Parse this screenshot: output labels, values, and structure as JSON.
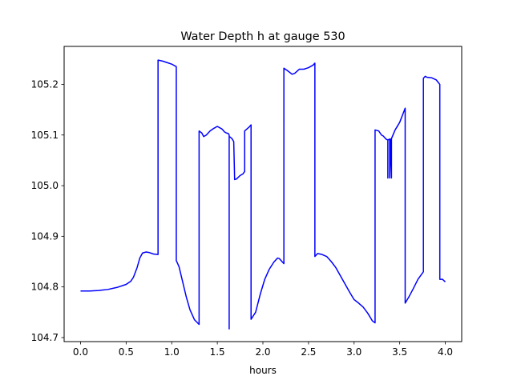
{
  "chart_data": {
    "type": "line",
    "title": "Water Depth h at gauge 530",
    "xlabel": "hours",
    "ylabel": "",
    "xlim": [
      -0.18,
      4.18
    ],
    "ylim": [
      104.692,
      105.275
    ],
    "xticks": [
      0.0,
      0.5,
      1.0,
      1.5,
      2.0,
      2.5,
      3.0,
      3.5,
      4.0
    ],
    "xtick_labels": [
      "0.0",
      "0.5",
      "1.0",
      "1.5",
      "2.0",
      "2.5",
      "3.0",
      "3.5",
      "4.0"
    ],
    "yticks": [
      104.7,
      104.8,
      104.9,
      105.0,
      105.1,
      105.2
    ],
    "ytick_labels": [
      "104.7",
      "104.8",
      "104.9",
      "105.0",
      "105.1",
      "105.2"
    ],
    "grid": false,
    "series": [
      {
        "color": "#0000ff",
        "x": [
          0.0,
          0.1,
          0.2,
          0.3,
          0.4,
          0.5,
          0.55,
          0.58,
          0.62,
          0.65,
          0.68,
          0.72,
          0.75,
          0.8,
          0.85,
          0.85,
          0.9,
          0.95,
          1.0,
          1.05,
          1.05,
          1.08,
          1.12,
          1.16,
          1.2,
          1.25,
          1.3,
          1.3,
          1.33,
          1.35,
          1.38,
          1.42,
          1.46,
          1.5,
          1.55,
          1.58,
          1.6,
          1.62,
          1.63,
          1.63,
          1.63,
          1.64,
          1.66,
          1.68,
          1.69,
          1.71,
          1.75,
          1.78,
          1.8,
          1.8,
          1.85,
          1.87,
          1.87,
          1.92,
          1.97,
          2.02,
          2.07,
          2.12,
          2.16,
          2.18,
          2.21,
          2.23,
          2.23,
          2.27,
          2.32,
          2.35,
          2.4,
          2.45,
          2.5,
          2.55,
          2.57,
          2.57,
          2.6,
          2.65,
          2.7,
          2.75,
          2.8,
          2.85,
          2.9,
          2.95,
          3.0,
          3.05,
          3.1,
          3.15,
          3.2,
          3.23,
          3.23,
          3.27,
          3.3,
          3.32,
          3.35,
          3.37,
          3.37,
          3.37,
          3.39,
          3.39,
          3.4,
          3.4,
          3.41,
          3.41,
          3.45,
          3.5,
          3.56,
          3.56,
          3.6,
          3.65,
          3.7,
          3.76,
          3.76,
          3.78,
          3.8,
          3.85,
          3.9,
          3.94,
          3.94,
          3.97,
          4.0
        ],
        "y": [
          104.792,
          104.792,
          104.793,
          104.795,
          104.799,
          104.805,
          104.811,
          104.819,
          104.838,
          104.857,
          104.867,
          104.869,
          104.868,
          104.865,
          104.864,
          105.248,
          105.246,
          105.243,
          105.24,
          105.235,
          104.852,
          104.84,
          104.81,
          104.78,
          104.755,
          104.735,
          104.726,
          105.108,
          105.104,
          105.097,
          105.1,
          105.108,
          105.113,
          105.117,
          105.112,
          105.106,
          105.104,
          105.103,
          105.1,
          104.717,
          105.097,
          105.096,
          105.093,
          105.087,
          105.012,
          105.013,
          105.02,
          105.023,
          105.028,
          105.108,
          105.116,
          105.12,
          104.736,
          104.75,
          104.785,
          104.815,
          104.835,
          104.849,
          104.857,
          104.856,
          104.85,
          104.846,
          105.232,
          105.227,
          105.22,
          105.222,
          105.23,
          105.23,
          105.233,
          105.238,
          105.242,
          104.86,
          104.866,
          104.864,
          104.86,
          104.85,
          104.838,
          104.822,
          104.806,
          104.79,
          104.775,
          104.768,
          104.76,
          104.748,
          104.733,
          104.729,
          105.11,
          105.108,
          105.1,
          105.098,
          105.092,
          105.09,
          105.015,
          105.09,
          105.092,
          105.015,
          105.09,
          105.092,
          105.015,
          105.093,
          105.11,
          105.125,
          105.153,
          104.768,
          104.78,
          104.797,
          104.815,
          104.83,
          105.212,
          105.216,
          105.214,
          105.213,
          105.209,
          105.2,
          104.815,
          104.815,
          104.81
        ]
      }
    ]
  }
}
